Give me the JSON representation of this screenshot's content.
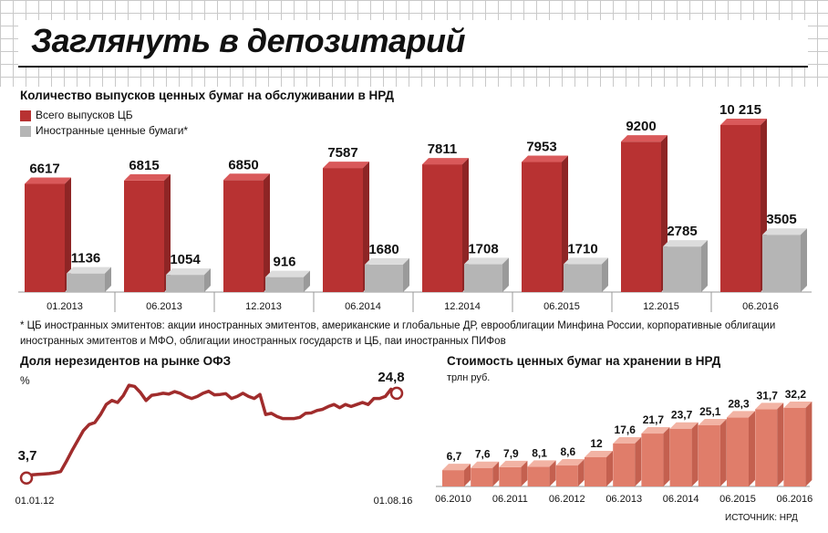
{
  "title": "Заглянуть в депозитарий",
  "colors": {
    "red": "#b83232",
    "red_top": "#d9595a",
    "grey": "#b5b5b5",
    "grey_top": "#dcdcdc",
    "line": "#a02c2c",
    "salmon": "#e07d6a",
    "salmon_top": "#f2b3a4"
  },
  "legend": {
    "total": "Всего выпусков ЦБ",
    "foreign": "Иностранные ценные бумаги*"
  },
  "footnote": "* ЦБ иностранных эмитентов: акции иностранных эмитентов, американские и глобальные ДР, еврооблигации Минфина России, корпоративные облигации иностранных эмитентов и МФО, облигации иностранных государств и ЦБ, паи иностранных ПИФов",
  "source": "ИСТОЧНИК: НРД",
  "chart_data": [
    {
      "type": "bar",
      "title": "Количество выпусков ценных бумаг на обслуживании в НРД",
      "categories": [
        "01.2013",
        "06.2013",
        "12.2013",
        "06.2014",
        "12.2014",
        "06.2015",
        "12.2015",
        "06.2016"
      ],
      "series": [
        {
          "name": "Всего выпусков ЦБ",
          "values": [
            6617,
            6815,
            6850,
            7587,
            7811,
            7953,
            9200,
            10215
          ],
          "labels": [
            "6617",
            "6815",
            "6850",
            "7587",
            "7811",
            "7953",
            "9200",
            "10 215"
          ]
        },
        {
          "name": "Иностранные ценные бумаги*",
          "values": [
            1136,
            1054,
            916,
            1680,
            1708,
            1710,
            2785,
            3505
          ],
          "labels": [
            "1136",
            "1054",
            "916",
            "1680",
            "1708",
            "1710",
            "2785",
            "3505"
          ]
        }
      ],
      "ylim": [
        0,
        11000
      ]
    },
    {
      "type": "line",
      "title": "Доля нерезидентов на рынке ОФЗ",
      "ylabel": "%",
      "x_start": "01.01.12",
      "x_end": "01.08.16",
      "start_label": "3,7",
      "end_label": "24,8",
      "ylim": [
        0,
        30
      ],
      "values": [
        3.7,
        4.5,
        4.6,
        4.7,
        4.8,
        5.0,
        5.3,
        7.8,
        10.5,
        13.0,
        15.5,
        17.0,
        17.5,
        19.5,
        22.0,
        23.0,
        22.5,
        24.2,
        26.8,
        26.5,
        25.0,
        23.0,
        24.3,
        24.5,
        24.8,
        24.6,
        25.2,
        24.8,
        24.0,
        23.5,
        24.0,
        24.8,
        25.3,
        24.4,
        24.5,
        24.7,
        23.5,
        24.0,
        24.8,
        24.0,
        23.5,
        24.5,
        19.5,
        19.8,
        19.0,
        18.5,
        18.5,
        18.5,
        18.8,
        19.8,
        19.9,
        20.5,
        20.8,
        21.5,
        22.0,
        21.2,
        22.0,
        21.5,
        22.0,
        22.5,
        22.0,
        23.5,
        23.5,
        24.0,
        25.8,
        24.8
      ]
    },
    {
      "type": "bar",
      "title": "Стоимость ценных бумаг на хранении в НРД",
      "unit": "трлн руб.",
      "values": [
        6.7,
        7.6,
        7.9,
        8.1,
        8.6,
        12,
        17.6,
        21.7,
        23.7,
        25.1,
        28.3,
        31.7,
        32.2
      ],
      "labels": [
        "6,7",
        "7,6",
        "7,9",
        "8,1",
        "8,6",
        "12",
        "17,6",
        "21,7",
        "23,7",
        "25,1",
        "28,3",
        "31,7",
        "32,2"
      ],
      "tick_labels": [
        "06.2010",
        "06.2011",
        "06.2012",
        "06.2013",
        "06.2014",
        "06.2015",
        "06.2016"
      ],
      "ylim": [
        0,
        36
      ]
    }
  ]
}
